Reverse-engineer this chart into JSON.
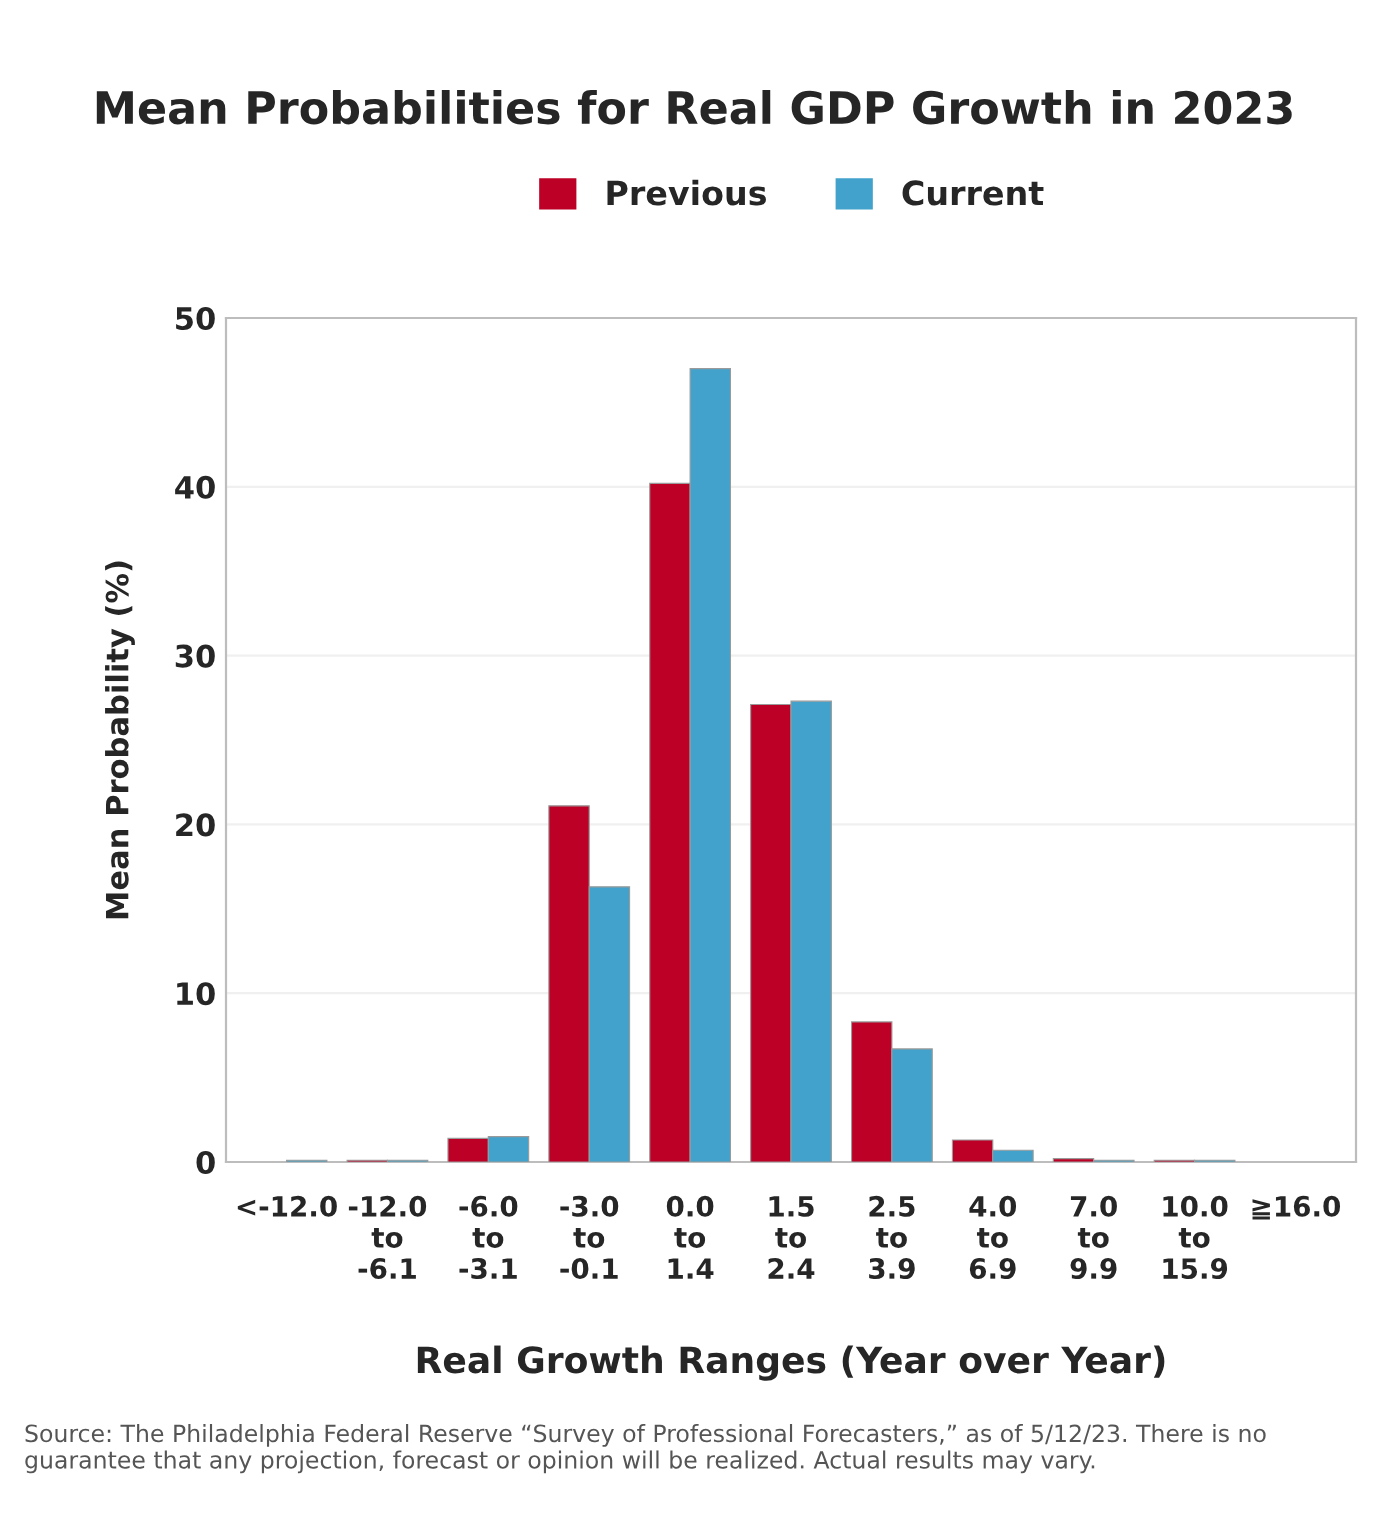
{
  "chart_data": {
    "type": "bar",
    "title": "Mean Probabilities for Real GDP Growth in 2023",
    "categories": [
      "<-12.0",
      "-12.0\nto\n-6.1",
      "-6.0\nto\n-3.1",
      "-3.0\nto\n-0.1",
      "0.0\nto\n1.4",
      "1.5\nto\n2.4",
      "2.5\nto\n3.9",
      "4.0\nto\n6.9",
      "7.0\nto\n9.9",
      "10.0\nto\n15.9",
      "≧16.0"
    ],
    "series": [
      {
        "name": "Previous",
        "color": "#bd0026",
        "values": [
          0.0,
          0.1,
          1.4,
          21.1,
          40.2,
          27.1,
          8.3,
          1.3,
          0.2,
          0.1,
          0.0
        ]
      },
      {
        "name": "Current",
        "color": "#42a2cb",
        "values": [
          0.1,
          0.1,
          1.5,
          16.3,
          47.0,
          27.3,
          6.7,
          0.7,
          0.1,
          0.1,
          0.0
        ]
      }
    ],
    "xlabel": "Real Growth Ranges (Year over Year)",
    "ylabel": "Mean Probability (%)",
    "ylim": [
      0,
      50
    ],
    "yticks": [
      0,
      10,
      20,
      30,
      40,
      50
    ],
    "grid": "y",
    "legend": "top",
    "annotations": [
      "Source: The Philadelphia Federal Reserve “Survey of Professional Forecasters,” as of 5/12/23. There is no guarantee that any projection, forecast or opinion will be realized. Actual results may vary."
    ]
  }
}
